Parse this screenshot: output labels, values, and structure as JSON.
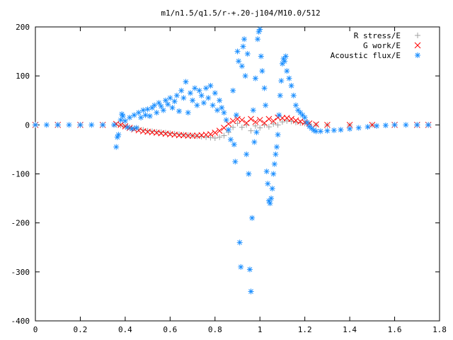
{
  "chart_data": {
    "type": "scatter",
    "title": "m1/n1.5/q1.5/r-+.20-j104/M10.0/512",
    "xlabel": "",
    "ylabel": "",
    "xlim": [
      0,
      1.8
    ],
    "ylim": [
      -400,
      200
    ],
    "grid": false,
    "legend_position": "top-right",
    "x_ticks": [
      0,
      0.2,
      0.4,
      0.6,
      0.8,
      1,
      1.2,
      1.4,
      1.6,
      1.8
    ],
    "x_tick_labels": [
      "0",
      "0.2",
      "0.4",
      "0.6",
      "0.8",
      "1",
      "1.2",
      "1.4",
      "1.6",
      "1.8"
    ],
    "y_ticks": [
      -400,
      -300,
      -200,
      -100,
      0,
      100,
      200
    ],
    "y_tick_labels": [
      "-400",
      "-300",
      "-200",
      "-100",
      "0",
      "100",
      "200"
    ],
    "series": [
      {
        "name": "R stress/E",
        "marker": "plus",
        "color": "#a0a0a0",
        "points": [
          [
            0.0,
            0
          ],
          [
            0.1,
            0
          ],
          [
            0.2,
            0
          ],
          [
            0.3,
            0
          ],
          [
            0.36,
            0
          ],
          [
            0.38,
            -1
          ],
          [
            0.4,
            -3
          ],
          [
            0.42,
            -5
          ],
          [
            0.44,
            -7
          ],
          [
            0.46,
            -9
          ],
          [
            0.48,
            -10
          ],
          [
            0.5,
            -12
          ],
          [
            0.52,
            -13
          ],
          [
            0.54,
            -14
          ],
          [
            0.56,
            -15
          ],
          [
            0.58,
            -16
          ],
          [
            0.6,
            -17
          ],
          [
            0.62,
            -18
          ],
          [
            0.64,
            -19
          ],
          [
            0.66,
            -20
          ],
          [
            0.68,
            -21
          ],
          [
            0.7,
            -22
          ],
          [
            0.72,
            -23
          ],
          [
            0.74,
            -24
          ],
          [
            0.76,
            -25
          ],
          [
            0.78,
            -26
          ],
          [
            0.8,
            -27
          ],
          [
            0.82,
            -25
          ],
          [
            0.84,
            -22
          ],
          [
            0.86,
            -15
          ],
          [
            0.88,
            -5
          ],
          [
            0.9,
            3
          ],
          [
            0.92,
            -5
          ],
          [
            0.94,
            0
          ],
          [
            0.96,
            -12
          ],
          [
            0.98,
            -2
          ],
          [
            1.0,
            -6
          ],
          [
            1.02,
            0
          ],
          [
            1.04,
            -4
          ],
          [
            1.06,
            2
          ],
          [
            1.08,
            0
          ],
          [
            1.1,
            6
          ],
          [
            1.12,
            8
          ],
          [
            1.14,
            7
          ],
          [
            1.16,
            5
          ],
          [
            1.18,
            4
          ],
          [
            1.2,
            3
          ],
          [
            1.22,
            2
          ],
          [
            1.25,
            0
          ],
          [
            1.3,
            0
          ],
          [
            1.4,
            0
          ],
          [
            1.5,
            0
          ],
          [
            1.6,
            0
          ],
          [
            1.7,
            0
          ],
          [
            1.75,
            0
          ]
        ]
      },
      {
        "name": "G work/E",
        "marker": "cross",
        "color": "#ff0000",
        "points": [
          [
            0.0,
            0
          ],
          [
            0.1,
            0
          ],
          [
            0.2,
            0
          ],
          [
            0.3,
            0
          ],
          [
            0.36,
            2
          ],
          [
            0.38,
            0
          ],
          [
            0.4,
            -3
          ],
          [
            0.42,
            -6
          ],
          [
            0.44,
            -9
          ],
          [
            0.46,
            -11
          ],
          [
            0.48,
            -13
          ],
          [
            0.5,
            -14
          ],
          [
            0.52,
            -15
          ],
          [
            0.54,
            -16
          ],
          [
            0.56,
            -17
          ],
          [
            0.58,
            -18
          ],
          [
            0.6,
            -19
          ],
          [
            0.62,
            -20
          ],
          [
            0.64,
            -21
          ],
          [
            0.66,
            -21
          ],
          [
            0.68,
            -22
          ],
          [
            0.7,
            -22
          ],
          [
            0.72,
            -22
          ],
          [
            0.74,
            -21
          ],
          [
            0.76,
            -20
          ],
          [
            0.78,
            -19
          ],
          [
            0.8,
            -16
          ],
          [
            0.82,
            -12
          ],
          [
            0.84,
            -6
          ],
          [
            0.86,
            2
          ],
          [
            0.88,
            8
          ],
          [
            0.9,
            12
          ],
          [
            0.92,
            10
          ],
          [
            0.94,
            4
          ],
          [
            0.96,
            12
          ],
          [
            0.98,
            6
          ],
          [
            1.0,
            10
          ],
          [
            1.02,
            4
          ],
          [
            1.04,
            12
          ],
          [
            1.06,
            8
          ],
          [
            1.08,
            15
          ],
          [
            1.1,
            14
          ],
          [
            1.12,
            14
          ],
          [
            1.14,
            12
          ],
          [
            1.16,
            9
          ],
          [
            1.18,
            7
          ],
          [
            1.2,
            5
          ],
          [
            1.22,
            3
          ],
          [
            1.25,
            1
          ],
          [
            1.3,
            0
          ],
          [
            1.4,
            0
          ],
          [
            1.5,
            0
          ],
          [
            1.6,
            0
          ],
          [
            1.7,
            0
          ],
          [
            1.75,
            0
          ]
        ]
      },
      {
        "name": "Acoustic flux/E",
        "marker": "star",
        "color": "#1e90ff",
        "points": [
          [
            0.0,
            0
          ],
          [
            0.05,
            0
          ],
          [
            0.1,
            0
          ],
          [
            0.15,
            0
          ],
          [
            0.2,
            0
          ],
          [
            0.25,
            0
          ],
          [
            0.3,
            0
          ],
          [
            0.35,
            0
          ],
          [
            0.36,
            -45
          ],
          [
            0.365,
            -25
          ],
          [
            0.37,
            -20
          ],
          [
            0.38,
            10
          ],
          [
            0.385,
            22
          ],
          [
            0.39,
            18
          ],
          [
            0.4,
            8
          ],
          [
            0.41,
            -5
          ],
          [
            0.42,
            15
          ],
          [
            0.43,
            -8
          ],
          [
            0.44,
            20
          ],
          [
            0.45,
            -6
          ],
          [
            0.46,
            25
          ],
          [
            0.47,
            15
          ],
          [
            0.48,
            30
          ],
          [
            0.49,
            20
          ],
          [
            0.5,
            32
          ],
          [
            0.51,
            18
          ],
          [
            0.52,
            35
          ],
          [
            0.53,
            40
          ],
          [
            0.54,
            25
          ],
          [
            0.55,
            45
          ],
          [
            0.56,
            38
          ],
          [
            0.57,
            30
          ],
          [
            0.58,
            50
          ],
          [
            0.59,
            42
          ],
          [
            0.6,
            55
          ],
          [
            0.61,
            35
          ],
          [
            0.62,
            48
          ],
          [
            0.63,
            60
          ],
          [
            0.64,
            28
          ],
          [
            0.65,
            70
          ],
          [
            0.66,
            55
          ],
          [
            0.67,
            88
          ],
          [
            0.68,
            25
          ],
          [
            0.69,
            65
          ],
          [
            0.7,
            50
          ],
          [
            0.71,
            75
          ],
          [
            0.72,
            40
          ],
          [
            0.73,
            70
          ],
          [
            0.74,
            60
          ],
          [
            0.75,
            45
          ],
          [
            0.76,
            75
          ],
          [
            0.77,
            55
          ],
          [
            0.78,
            80
          ],
          [
            0.79,
            40
          ],
          [
            0.8,
            65
          ],
          [
            0.81,
            30
          ],
          [
            0.82,
            50
          ],
          [
            0.83,
            35
          ],
          [
            0.84,
            25
          ],
          [
            0.85,
            10
          ],
          [
            0.86,
            -10
          ],
          [
            0.87,
            -30
          ],
          [
            0.88,
            70
          ],
          [
            0.885,
            -40
          ],
          [
            0.89,
            -75
          ],
          [
            0.895,
            20
          ],
          [
            0.9,
            150
          ],
          [
            0.905,
            130
          ],
          [
            0.91,
            -240
          ],
          [
            0.915,
            -290
          ],
          [
            0.92,
            120
          ],
          [
            0.925,
            160
          ],
          [
            0.93,
            175
          ],
          [
            0.935,
            100
          ],
          [
            0.94,
            -60
          ],
          [
            0.945,
            145
          ],
          [
            0.95,
            -100
          ],
          [
            0.955,
            -295
          ],
          [
            0.96,
            -340
          ],
          [
            0.965,
            -190
          ],
          [
            0.97,
            30
          ],
          [
            0.975,
            -35
          ],
          [
            0.98,
            95
          ],
          [
            0.985,
            -15
          ],
          [
            0.99,
            175
          ],
          [
            0.995,
            190
          ],
          [
            1.0,
            195
          ],
          [
            1.005,
            140
          ],
          [
            1.01,
            110
          ],
          [
            1.02,
            75
          ],
          [
            1.025,
            40
          ],
          [
            1.03,
            -95
          ],
          [
            1.035,
            -120
          ],
          [
            1.04,
            -155
          ],
          [
            1.045,
            -160
          ],
          [
            1.05,
            -150
          ],
          [
            1.055,
            -130
          ],
          [
            1.06,
            -100
          ],
          [
            1.065,
            -80
          ],
          [
            1.07,
            -60
          ],
          [
            1.075,
            -45
          ],
          [
            1.08,
            -20
          ],
          [
            1.085,
            20
          ],
          [
            1.09,
            60
          ],
          [
            1.095,
            90
          ],
          [
            1.1,
            125
          ],
          [
            1.105,
            135
          ],
          [
            1.11,
            130
          ],
          [
            1.115,
            140
          ],
          [
            1.12,
            110
          ],
          [
            1.13,
            95
          ],
          [
            1.14,
            80
          ],
          [
            1.15,
            60
          ],
          [
            1.16,
            40
          ],
          [
            1.17,
            30
          ],
          [
            1.18,
            25
          ],
          [
            1.19,
            20
          ],
          [
            1.2,
            15
          ],
          [
            1.21,
            5
          ],
          [
            1.22,
            -3
          ],
          [
            1.23,
            -7
          ],
          [
            1.24,
            -11
          ],
          [
            1.25,
            -13
          ],
          [
            1.27,
            -13
          ],
          [
            1.3,
            -12
          ],
          [
            1.33,
            -11
          ],
          [
            1.36,
            -10
          ],
          [
            1.4,
            -8
          ],
          [
            1.44,
            -6
          ],
          [
            1.48,
            -4
          ],
          [
            1.52,
            -2
          ],
          [
            1.56,
            -1
          ],
          [
            1.6,
            0
          ],
          [
            1.65,
            0
          ],
          [
            1.7,
            0
          ],
          [
            1.75,
            0
          ]
        ]
      }
    ]
  }
}
